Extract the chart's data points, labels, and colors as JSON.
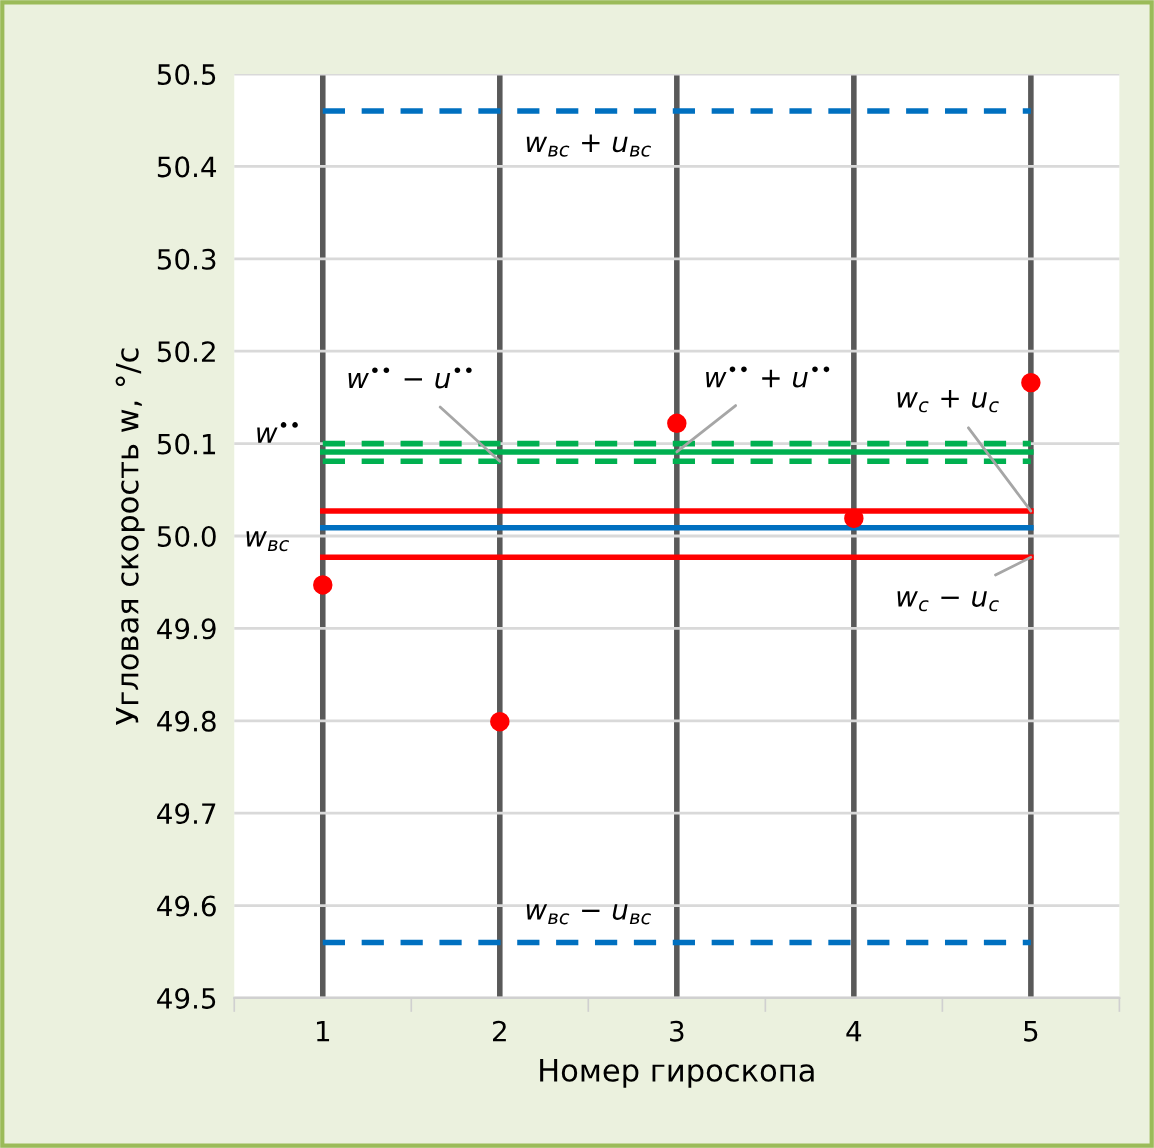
{
  "chart_data": {
    "type": "scatter",
    "xlabel": "Номер гироскопа",
    "ylabel": "Угловая скорость w, °/с",
    "x": [
      1,
      2,
      3,
      4,
      5
    ],
    "series": [
      {
        "color": "#ff0000",
        "values": [
          49.947,
          49.799,
          50.122,
          50.019,
          50.166
        ]
      }
    ],
    "marker": "circle",
    "xlim": [
      0.5,
      5.5
    ],
    "xticks": [
      {
        "value": 0.5,
        "label": null
      },
      1,
      {
        "value": 1.5,
        "label": null
      },
      2,
      {
        "value": 2.5,
        "label": null
      },
      3,
      {
        "value": 3.5,
        "label": null
      },
      4,
      {
        "value": 4.5,
        "label": null
      },
      5,
      {
        "value": 5.5,
        "label": null
      }
    ],
    "ylim": [
      49.5,
      50.5
    ],
    "yticks": [
      49.5,
      49.6,
      49.7,
      49.8,
      49.9,
      {
        "value": 50,
        "label": "50.0"
      },
      50.1,
      50.2,
      50.3,
      50.4,
      50.5
    ],
    "grid": true,
    "ref_lines": [
      {
        "axis": "y",
        "value": 50.46,
        "color": "#0070c0",
        "line_style": "dashed"
      },
      {
        "axis": "y",
        "value": 49.56,
        "color": "#0070c0",
        "line_style": "dashed"
      },
      {
        "axis": "y",
        "value": 50.1,
        "color": "#00b050",
        "line_style": "dashed"
      },
      {
        "axis": "y",
        "value": 50.091,
        "color": "#00b050",
        "line_style": "solid"
      },
      {
        "axis": "y",
        "value": 50.081,
        "color": "#00b050",
        "line_style": "dashed"
      },
      {
        "axis": "y",
        "value": 50.027,
        "color": "#ff0000",
        "line_style": "solid"
      },
      {
        "axis": "y",
        "value": 50.009,
        "color": "#0070c0",
        "line_style": "solid"
      },
      {
        "axis": "y",
        "value": 49.977,
        "color": "#ff0000",
        "line_style": "solid"
      }
    ],
    "annotations": [
      {
        "text": "w$_{вс}$ + u$_{вс}$",
        "x": 2.5,
        "y": 50.46
      },
      {
        "text": "w$_{вс}$ − u$_{вс}$",
        "x": 2.5,
        "y": 49.56
      },
      {
        "text": "w$^{••}$",
        "x": 1,
        "y": 50.091
      },
      {
        "text": "w$_{вс}$",
        "x": 1,
        "y": 50.009
      },
      {
        "text": "w$^{••}$ − u$^{••}$",
        "x": 2,
        "y": 50.081
      },
      {
        "text": "w$^{••}$ + u$^{••}$",
        "x": 3,
        "y": 50.091
      },
      {
        "text": "w$_{с}$ + u$_{с}$",
        "x": 5,
        "y": 50.027
      },
      {
        "text": "w$_{с}$ − u$_{с}$",
        "x": 5,
        "y": 49.977
      }
    ]
  }
}
